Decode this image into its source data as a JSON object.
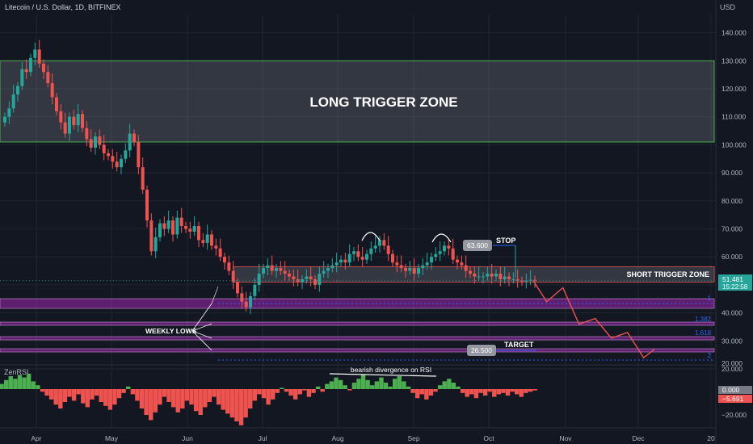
{
  "header": {
    "title": "Litecoin / U.S. Dollar, 1D, BITFINEX",
    "currency": "USD"
  },
  "indicator": {
    "name": "ZenRSI"
  },
  "annotations": {
    "long_zone": "LONG TRIGGER ZONE",
    "short_zone": "SHORT TRIGGER ZONE",
    "stop": "STOP",
    "target": "TARGET",
    "weekly_lows": "WEEKLY LOWS",
    "divergence": "bearish divergence on RSI",
    "stop_price": "63.600",
    "target_price": "26.500",
    "fib_1": "1",
    "fib_1382": "1.382",
    "fib_1618": "1.618",
    "fib_2": "2"
  },
  "price_tags": {
    "last": "51.481",
    "countdown": "15:22:58",
    "rsi_a": "0.000",
    "rsi_b": "−5.691"
  },
  "colors": {
    "bg": "#131722",
    "up": "#26a69a",
    "down": "#ef5350",
    "zone_border": "#4caf50",
    "short_border": "#ef5350",
    "purple": "#9c27b0",
    "projection": "#ef5350"
  },
  "chart_data": {
    "type": "candlestick",
    "price_axis": {
      "min": 20,
      "max": 145,
      "ticks": [
        "140.000",
        "130.000",
        "120.000",
        "110.000",
        "100.000",
        "90.000",
        "80.000",
        "70.000",
        "60.000",
        "50.000",
        "40.000",
        "30.000",
        "20.000"
      ]
    },
    "time_axis": {
      "ticks": [
        "Apr",
        "May",
        "Jun",
        "Jul",
        "Aug",
        "Sep",
        "Oct",
        "Nov",
        "Dec",
        "20"
      ]
    },
    "zones": [
      {
        "name": "long trigger zone",
        "low": 101,
        "high": 130
      },
      {
        "name": "short trigger zone",
        "low": 51,
        "high": 56.5
      }
    ],
    "fib_levels": [
      {
        "label": "1",
        "value": 43.5
      },
      {
        "label": "1.382",
        "value": 36
      },
      {
        "label": "1.618",
        "value": 31
      },
      {
        "label": "2",
        "value": 22.5
      }
    ],
    "levels": {
      "stop": 63.6,
      "target": 26.5,
      "last": 51.481
    },
    "projection_path": [
      [
        0,
        51.5
      ],
      [
        5,
        44
      ],
      [
        11,
        49
      ],
      [
        17,
        36
      ],
      [
        23,
        38
      ],
      [
        29,
        31
      ],
      [
        35,
        33
      ],
      [
        41,
        24
      ],
      [
        45,
        27
      ]
    ],
    "candles_close": [
      110,
      113,
      118,
      121,
      127,
      126,
      131,
      134,
      129,
      126,
      122,
      117,
      112,
      108,
      104,
      110,
      107,
      111,
      106,
      102,
      99,
      103,
      100,
      97,
      96,
      94,
      92,
      95,
      98,
      104,
      101,
      92,
      84,
      73,
      62,
      67,
      72,
      70,
      73,
      68,
      74,
      71,
      70,
      69,
      71,
      66,
      65,
      68,
      64,
      63,
      60,
      58,
      55,
      51,
      47,
      44,
      42,
      46,
      50,
      54,
      56,
      57,
      55,
      56,
      55,
      54,
      53,
      52,
      51,
      52,
      53,
      52,
      50,
      54,
      55,
      56,
      57,
      58,
      59,
      58,
      61,
      62,
      60,
      59,
      61,
      63,
      64,
      66,
      64,
      61,
      58,
      57,
      56,
      55,
      56,
      54,
      56,
      57,
      58,
      60,
      61,
      62,
      64,
      63,
      59,
      58,
      57,
      55,
      54,
      53,
      53,
      53,
      54,
      53,
      54,
      52,
      53,
      52,
      52,
      51.5,
      51.2,
      51.5,
      51.8,
      51.5
    ],
    "rsi": {
      "name": "ZenRSI",
      "ticks": [
        "20.000",
        "0.000",
        "−20.000"
      ],
      "values": [
        4,
        7,
        10,
        8,
        11,
        9,
        12,
        6,
        3,
        -2,
        -5,
        -8,
        -12,
        -15,
        -10,
        -6,
        -9,
        -4,
        -11,
        -14,
        -8,
        -5,
        -10,
        -13,
        -16,
        -12,
        -7,
        -3,
        2,
        -4,
        -9,
        -15,
        -20,
        -24,
        -18,
        -12,
        -6,
        -10,
        -14,
        -18,
        -15,
        -9,
        -12,
        -17,
        -20,
        -14,
        -10,
        -6,
        -12,
        -16,
        -19,
        -22,
        -25,
        -28,
        -22,
        -15,
        -9,
        -4,
        -7,
        -12,
        -8,
        -3,
        1,
        -2,
        -5,
        -8,
        -4,
        -1,
        -6,
        -3,
        2,
        -2,
        4,
        6,
        9,
        7,
        3,
        -1,
        5,
        8,
        11,
        7,
        3,
        6,
        9,
        5,
        2,
        8,
        10,
        6,
        2,
        -3,
        -7,
        -4,
        -8,
        -5,
        -2,
        3,
        6,
        8,
        5,
        2,
        -3,
        -6,
        -4,
        -7,
        -3,
        -5,
        -2,
        -6,
        -4,
        -3,
        -5,
        -2,
        -4,
        -6,
        -3,
        -2,
        -1
      ]
    }
  }
}
